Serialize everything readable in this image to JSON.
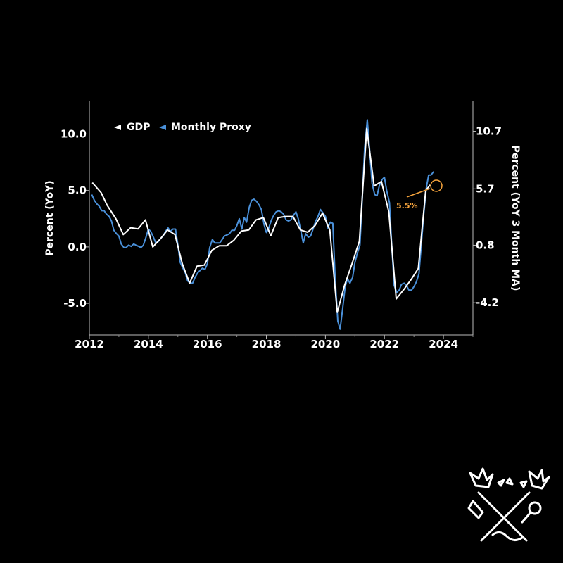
{
  "chart_data": {
    "type": "line",
    "xlim": [
      2012,
      2025
    ],
    "x_ticks": [
      "2012",
      "2014",
      "2016",
      "2018",
      "2020",
      "2022",
      "2024"
    ],
    "y_left": {
      "label": "Percent (YoY)",
      "lim": [
        -7.8,
        12.9
      ],
      "ticks": [
        "-5.0",
        "0.0",
        "5.0",
        "10.0"
      ]
    },
    "y_right": {
      "label": "Percent (YoY 3 Month MA)",
      "lim": [
        -7.0,
        13.3
      ],
      "ticks": [
        "-4.2",
        "0.8",
        "5.7",
        "10.7"
      ]
    },
    "legend": {
      "placement": "top-left",
      "entries": [
        "GDP",
        "Monthly Proxy"
      ]
    },
    "annotation": {
      "text": "5.5%",
      "color": "#f5a33c"
    },
    "series": [
      {
        "name": "GDP",
        "axis": "left",
        "color": "#ffffff",
        "points": [
          [
            2012.1,
            5.7
          ],
          [
            2012.4,
            4.8
          ],
          [
            2012.6,
            3.7
          ],
          [
            2012.9,
            2.5
          ],
          [
            2013.15,
            1.1
          ],
          [
            2013.4,
            1.7
          ],
          [
            2013.65,
            1.6
          ],
          [
            2013.9,
            2.4
          ],
          [
            2014.15,
            0.0
          ],
          [
            2014.4,
            0.7
          ],
          [
            2014.65,
            1.5
          ],
          [
            2014.9,
            1.1
          ],
          [
            2015.15,
            -1.5
          ],
          [
            2015.4,
            -3.2
          ],
          [
            2015.65,
            -1.7
          ],
          [
            2015.9,
            -1.6
          ],
          [
            2016.15,
            -0.3
          ],
          [
            2016.4,
            0.1
          ],
          [
            2016.65,
            0.1
          ],
          [
            2016.9,
            0.6
          ],
          [
            2017.15,
            1.4
          ],
          [
            2017.4,
            1.5
          ],
          [
            2017.65,
            2.4
          ],
          [
            2017.9,
            2.6
          ],
          [
            2018.15,
            1.0
          ],
          [
            2018.4,
            2.6
          ],
          [
            2018.65,
            2.7
          ],
          [
            2018.9,
            2.7
          ],
          [
            2019.15,
            1.5
          ],
          [
            2019.4,
            1.3
          ],
          [
            2019.65,
            1.9
          ],
          [
            2019.9,
            3.0
          ],
          [
            2020.15,
            1.5
          ],
          [
            2020.4,
            -5.8
          ],
          [
            2020.65,
            -3.4
          ],
          [
            2020.9,
            -1.5
          ],
          [
            2021.15,
            0.5
          ],
          [
            2021.4,
            10.5
          ],
          [
            2021.65,
            5.4
          ],
          [
            2021.9,
            5.8
          ],
          [
            2022.15,
            3.1
          ],
          [
            2022.4,
            -4.6
          ],
          [
            2022.65,
            -3.8
          ],
          [
            2022.9,
            -2.9
          ],
          [
            2023.15,
            -1.9
          ],
          [
            2023.4,
            5.0
          ],
          [
            2023.55,
            5.5
          ]
        ]
      },
      {
        "name": "Monthly Proxy",
        "axis": "right",
        "color": "#4a90d9",
        "points": [
          [
            2012.08,
            5.2
          ],
          [
            2012.17,
            4.7
          ],
          [
            2012.25,
            4.4
          ],
          [
            2012.33,
            4.2
          ],
          [
            2012.42,
            3.8
          ],
          [
            2012.5,
            3.8
          ],
          [
            2012.58,
            3.5
          ],
          [
            2012.67,
            3.3
          ],
          [
            2012.75,
            2.9
          ],
          [
            2012.83,
            2.1
          ],
          [
            2012.92,
            1.8
          ],
          [
            2013.0,
            1.6
          ],
          [
            2013.08,
            0.9
          ],
          [
            2013.17,
            0.6
          ],
          [
            2013.25,
            0.6
          ],
          [
            2013.33,
            0.8
          ],
          [
            2013.42,
            0.7
          ],
          [
            2013.5,
            0.9
          ],
          [
            2013.58,
            0.8
          ],
          [
            2013.67,
            0.7
          ],
          [
            2013.75,
            0.6
          ],
          [
            2013.83,
            0.8
          ],
          [
            2013.92,
            1.5
          ],
          [
            2014.0,
            2.2
          ],
          [
            2014.08,
            2.0
          ],
          [
            2014.17,
            1.5
          ],
          [
            2014.25,
            1.0
          ],
          [
            2014.33,
            1.1
          ],
          [
            2014.42,
            1.4
          ],
          [
            2014.5,
            1.6
          ],
          [
            2014.58,
            2.0
          ],
          [
            2014.67,
            2.3
          ],
          [
            2014.75,
            2.0
          ],
          [
            2014.83,
            2.2
          ],
          [
            2014.92,
            2.2
          ],
          [
            2015.0,
            0.8
          ],
          [
            2015.08,
            -0.7
          ],
          [
            2015.17,
            -1.2
          ],
          [
            2015.25,
            -1.6
          ],
          [
            2015.33,
            -2.3
          ],
          [
            2015.42,
            -2.5
          ],
          [
            2015.5,
            -2.5
          ],
          [
            2015.58,
            -2.0
          ],
          [
            2015.67,
            -1.6
          ],
          [
            2015.75,
            -1.4
          ],
          [
            2015.83,
            -1.2
          ],
          [
            2015.92,
            -1.3
          ],
          [
            2016.0,
            -0.8
          ],
          [
            2016.08,
            0.6
          ],
          [
            2016.17,
            1.3
          ],
          [
            2016.25,
            1.0
          ],
          [
            2016.33,
            1.0
          ],
          [
            2016.42,
            1.0
          ],
          [
            2016.5,
            1.3
          ],
          [
            2016.58,
            1.6
          ],
          [
            2016.67,
            1.7
          ],
          [
            2016.75,
            1.8
          ],
          [
            2016.83,
            2.1
          ],
          [
            2016.92,
            2.1
          ],
          [
            2017.0,
            2.5
          ],
          [
            2017.08,
            3.1
          ],
          [
            2017.17,
            2.2
          ],
          [
            2017.25,
            3.2
          ],
          [
            2017.33,
            2.8
          ],
          [
            2017.42,
            4.1
          ],
          [
            2017.5,
            4.7
          ],
          [
            2017.58,
            4.8
          ],
          [
            2017.67,
            4.6
          ],
          [
            2017.75,
            4.3
          ],
          [
            2017.83,
            3.9
          ],
          [
            2017.92,
            2.6
          ],
          [
            2018.0,
            1.9
          ],
          [
            2018.08,
            2.3
          ],
          [
            2018.17,
            3.0
          ],
          [
            2018.25,
            3.4
          ],
          [
            2018.33,
            3.7
          ],
          [
            2018.42,
            3.8
          ],
          [
            2018.5,
            3.7
          ],
          [
            2018.58,
            3.5
          ],
          [
            2018.67,
            3.0
          ],
          [
            2018.75,
            2.9
          ],
          [
            2018.83,
            3.0
          ],
          [
            2018.92,
            3.4
          ],
          [
            2019.0,
            3.7
          ],
          [
            2019.08,
            3.1
          ],
          [
            2019.17,
            2.0
          ],
          [
            2019.25,
            1.0
          ],
          [
            2019.33,
            1.8
          ],
          [
            2019.42,
            1.5
          ],
          [
            2019.5,
            1.6
          ],
          [
            2019.58,
            2.2
          ],
          [
            2019.67,
            2.9
          ],
          [
            2019.75,
            3.3
          ],
          [
            2019.83,
            3.9
          ],
          [
            2019.92,
            3.6
          ],
          [
            2020.0,
            3.3
          ],
          [
            2020.08,
            2.3
          ],
          [
            2020.17,
            2.8
          ],
          [
            2020.25,
            2.7
          ],
          [
            2020.33,
            -2.0
          ],
          [
            2020.42,
            -5.8
          ],
          [
            2020.5,
            -6.5
          ],
          [
            2020.58,
            -4.8
          ],
          [
            2020.67,
            -2.8
          ],
          [
            2020.75,
            -2.1
          ],
          [
            2020.83,
            -2.5
          ],
          [
            2020.92,
            -2.0
          ],
          [
            2021.0,
            -0.7
          ],
          [
            2021.08,
            0.1
          ],
          [
            2021.17,
            0.8
          ],
          [
            2021.25,
            4.9
          ],
          [
            2021.33,
            9.2
          ],
          [
            2021.42,
            11.7
          ],
          [
            2021.5,
            9.0
          ],
          [
            2021.58,
            6.2
          ],
          [
            2021.67,
            5.2
          ],
          [
            2021.75,
            5.1
          ],
          [
            2021.83,
            6.0
          ],
          [
            2021.92,
            6.5
          ],
          [
            2022.0,
            6.7
          ],
          [
            2022.08,
            5.5
          ],
          [
            2022.17,
            4.5
          ],
          [
            2022.25,
            0.7
          ],
          [
            2022.33,
            -2.7
          ],
          [
            2022.42,
            -3.3
          ],
          [
            2022.5,
            -3.1
          ],
          [
            2022.58,
            -2.6
          ],
          [
            2022.67,
            -2.5
          ],
          [
            2022.75,
            -2.7
          ],
          [
            2022.83,
            -3.1
          ],
          [
            2022.92,
            -3.1
          ],
          [
            2023.0,
            -2.8
          ],
          [
            2023.08,
            -2.4
          ],
          [
            2023.17,
            -1.7
          ],
          [
            2023.25,
            0.8
          ],
          [
            2023.33,
            3.4
          ],
          [
            2023.42,
            5.8
          ],
          [
            2023.5,
            6.9
          ],
          [
            2023.58,
            6.9
          ],
          [
            2023.67,
            7.2
          ]
        ]
      }
    ]
  },
  "legend": {
    "gdp_label": "GDP",
    "proxy_label": "Monthly Proxy"
  },
  "annotation": {
    "label": "5.5%"
  }
}
